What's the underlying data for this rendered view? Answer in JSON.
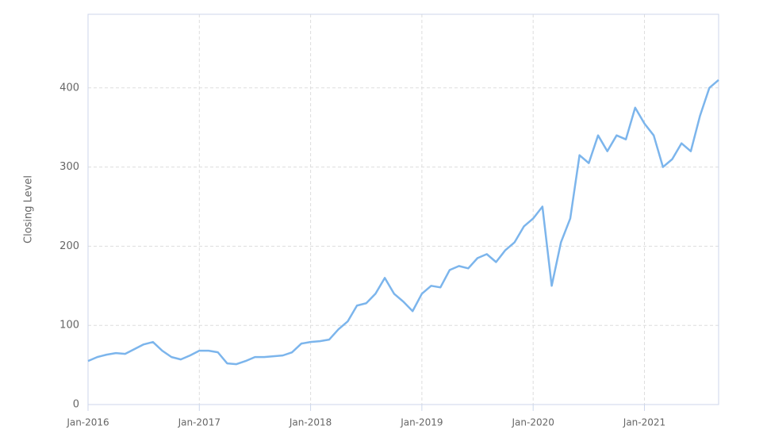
{
  "chart_data": {
    "type": "line",
    "y_label": "Closing Level",
    "x": [
      "2016-01",
      "2016-02",
      "2016-03",
      "2016-04",
      "2016-05",
      "2016-06",
      "2016-07",
      "2016-08",
      "2016-09",
      "2016-10",
      "2016-11",
      "2016-12",
      "2017-01",
      "2017-02",
      "2017-03",
      "2017-04",
      "2017-05",
      "2017-06",
      "2017-07",
      "2017-08",
      "2017-09",
      "2017-10",
      "2017-11",
      "2017-12",
      "2018-01",
      "2018-02",
      "2018-03",
      "2018-04",
      "2018-05",
      "2018-06",
      "2018-07",
      "2018-08",
      "2018-09",
      "2018-10",
      "2018-11",
      "2018-12",
      "2019-01",
      "2019-02",
      "2019-03",
      "2019-04",
      "2019-05",
      "2019-06",
      "2019-07",
      "2019-08",
      "2019-09",
      "2019-10",
      "2019-11",
      "2019-12",
      "2020-01",
      "2020-02",
      "2020-03",
      "2020-04",
      "2020-05",
      "2020-06",
      "2020-07",
      "2020-08",
      "2020-09",
      "2020-10",
      "2020-11",
      "2020-12",
      "2021-01",
      "2021-02",
      "2021-03",
      "2021-04",
      "2021-05",
      "2021-06",
      "2021-07",
      "2021-08",
      "2021-09"
    ],
    "series": [
      {
        "name": "Closing Level",
        "color": "#7cb5ec",
        "values": [
          55,
          60,
          63,
          65,
          64,
          70,
          76,
          79,
          68,
          60,
          57,
          62,
          68,
          68,
          66,
          52,
          51,
          55,
          60,
          60,
          61,
          62,
          66,
          77,
          79,
          80,
          82,
          95,
          105,
          125,
          128,
          140,
          160,
          140,
          130,
          118,
          140,
          150,
          148,
          170,
          175,
          172,
          185,
          190,
          180,
          195,
          205,
          225,
          235,
          250,
          150,
          205,
          235,
          315,
          305,
          340,
          320,
          340,
          335,
          375,
          355,
          340,
          300,
          310,
          330,
          320,
          365,
          400,
          410
        ]
      }
    ],
    "xlim": [
      "2016-01",
      "2021-09"
    ],
    "xticks": [
      {
        "value": "2016-01",
        "label": "Jan-2016"
      },
      {
        "value": "2017-01",
        "label": "Jan-2017"
      },
      {
        "value": "2018-01",
        "label": "Jan-2018"
      },
      {
        "value": "2019-01",
        "label": "Jan-2019"
      },
      {
        "value": "2020-01",
        "label": "Jan-2020"
      },
      {
        "value": "2021-01",
        "label": "Jan-2021"
      }
    ],
    "ylim": [
      0,
      493
    ],
    "yticks": [
      0,
      100,
      200,
      300,
      400
    ],
    "grid": true
  }
}
